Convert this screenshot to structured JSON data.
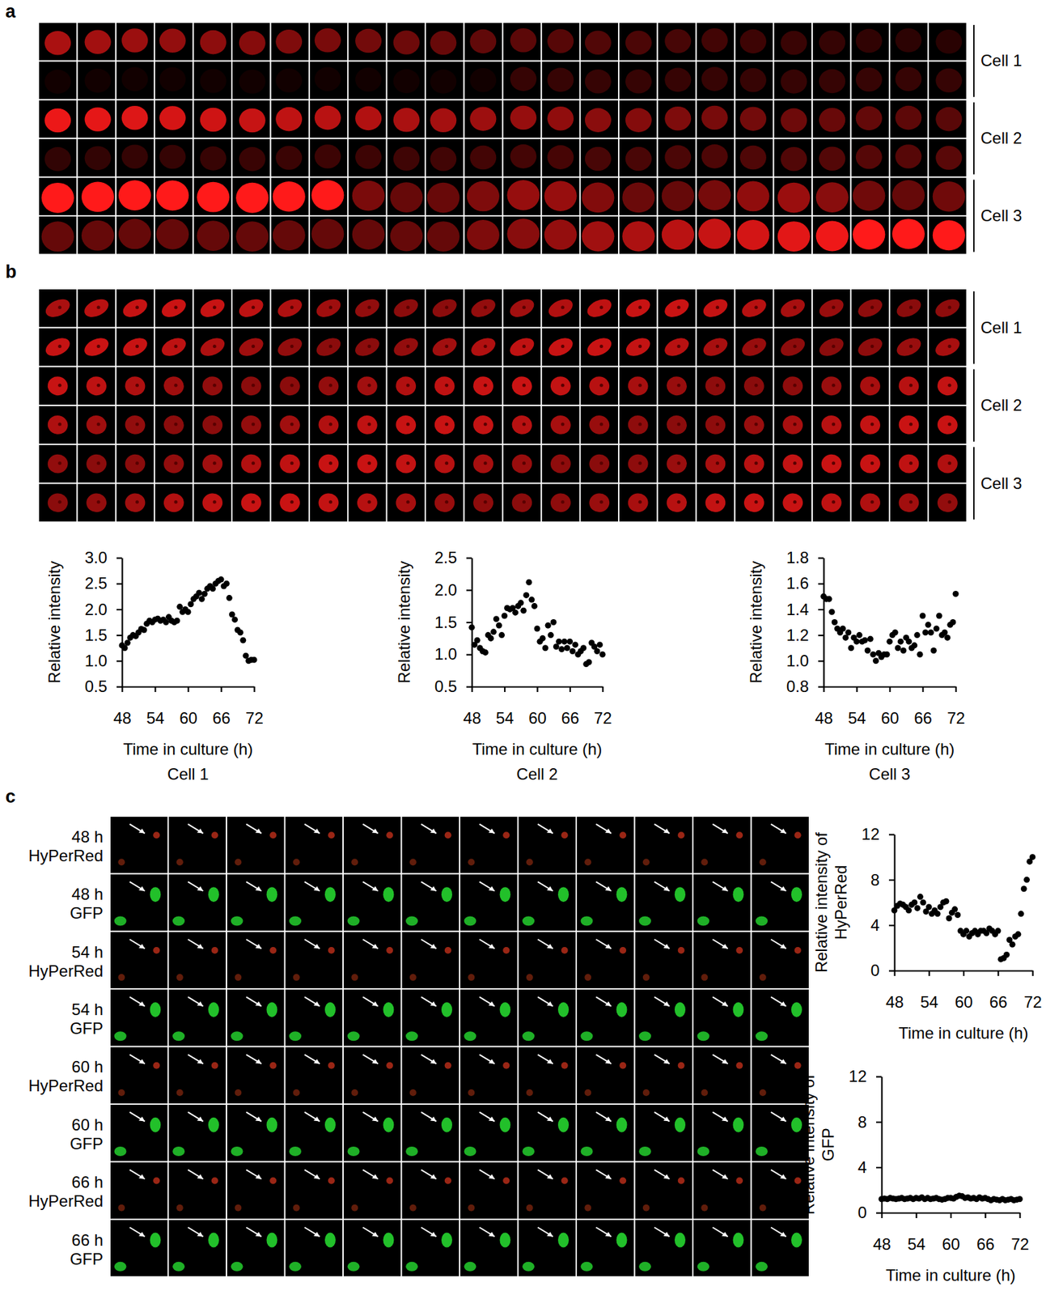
{
  "panel_labels": [
    "a",
    "b",
    "c"
  ],
  "panel_a": {
    "cells": [
      "Cell 1",
      "Cell 2",
      "Cell 3"
    ]
  },
  "panel_b": {
    "cells": [
      "Cell 1",
      "Cell 2",
      "Cell 3"
    ]
  },
  "panel_c": {
    "rows": [
      {
        "time": "48 h",
        "channel": "HyPerRed"
      },
      {
        "time": "48 h",
        "channel": "GFP"
      },
      {
        "time": "54 h",
        "channel": "HyPerRed"
      },
      {
        "time": "54 h",
        "channel": "GFP"
      },
      {
        "time": "60 h",
        "channel": "HyPerRed"
      },
      {
        "time": "60 h",
        "channel": "GFP"
      },
      {
        "time": "66 h",
        "channel": "HyPerRed"
      },
      {
        "time": "66 h",
        "channel": "GFP"
      }
    ]
  },
  "chart_data": [
    {
      "type": "scatter",
      "title": "Cell 1",
      "xlabel": "Time in culture (h)",
      "ylabel": "Relative intensity",
      "color": "#000000",
      "marker": "circle",
      "x": [
        48,
        48.5,
        49,
        49.5,
        50,
        50.5,
        51,
        51.5,
        52,
        52.5,
        53,
        53.5,
        54,
        54.5,
        55,
        55.5,
        56,
        56.5,
        57,
        57.5,
        58,
        58.5,
        59,
        59.5,
        60,
        60.5,
        61,
        61.5,
        62,
        62.5,
        63,
        63.5,
        64,
        64.5,
        65,
        65.5,
        66,
        66.5,
        67,
        67.5,
        68,
        68.5,
        69,
        69.5,
        70,
        70.5,
        71,
        71.5,
        72
      ],
      "values": [
        1.3,
        1.25,
        1.35,
        1.45,
        1.5,
        1.48,
        1.55,
        1.62,
        1.6,
        1.72,
        1.78,
        1.75,
        1.8,
        1.82,
        1.78,
        1.8,
        1.75,
        1.85,
        1.78,
        1.75,
        1.78,
        2.05,
        1.95,
        2.0,
        1.95,
        2.1,
        2.2,
        2.25,
        2.32,
        2.2,
        2.3,
        2.4,
        2.45,
        2.4,
        2.5,
        2.55,
        2.58,
        2.45,
        2.5,
        2.22,
        1.9,
        1.8,
        1.6,
        1.55,
        1.4,
        1.1,
        1.0,
        1.02,
        1.02
      ],
      "xlim": [
        48,
        72
      ],
      "xticks": [
        48,
        54,
        60,
        66,
        72
      ],
      "ylim": [
        0.5,
        3
      ],
      "yticks": [
        0.5,
        {
          "value": 1,
          "label": "1.0"
        },
        1.5,
        {
          "value": 2,
          "label": "2.0"
        },
        2.5,
        {
          "value": 3,
          "label": "3.0"
        }
      ]
    },
    {
      "type": "scatter",
      "title": "Cell 2",
      "xlabel": "Time in culture (h)",
      "ylabel": "Relative intensity",
      "color": "#000000",
      "marker": "circle",
      "x": [
        48,
        48.5,
        49,
        49.5,
        50,
        50.5,
        51,
        51.5,
        52,
        52.5,
        53,
        53.5,
        54,
        54.5,
        55,
        55.5,
        56,
        56.5,
        57,
        57.5,
        58,
        58.5,
        59,
        59.5,
        60,
        60.5,
        61,
        61.5,
        62,
        62.5,
        63,
        63.5,
        64,
        64.5,
        65,
        65.5,
        66,
        66.5,
        67,
        67.5,
        68,
        68.5,
        69,
        69.5,
        70,
        70.5,
        71,
        71.5,
        72
      ],
      "values": [
        1.42,
        1.15,
        1.22,
        1.1,
        1.05,
        1.03,
        1.3,
        1.25,
        1.35,
        1.55,
        1.45,
        1.3,
        1.6,
        1.72,
        1.7,
        1.72,
        1.65,
        1.75,
        1.8,
        1.68,
        1.92,
        2.12,
        1.85,
        1.75,
        1.4,
        1.2,
        1.25,
        1.1,
        1.45,
        1.3,
        1.5,
        1.12,
        1.2,
        1.08,
        1.2,
        1.1,
        1.2,
        1.05,
        1.15,
        1.0,
        1.05,
        1.1,
        0.85,
        0.88,
        1.18,
        1.12,
        1.05,
        1.15,
        1.0
      ],
      "xlim": [
        48,
        72
      ],
      "xticks": [
        48,
        54,
        60,
        66,
        72
      ],
      "ylim": [
        0.5,
        2.5
      ],
      "yticks": [
        0.5,
        {
          "value": 1,
          "label": "1.0"
        },
        1.5,
        {
          "value": 2,
          "label": "2.0"
        },
        2.5
      ]
    },
    {
      "type": "scatter",
      "title": "Cell 3",
      "xlabel": "Time in culture (h)",
      "ylabel": "Relative intensity",
      "color": "#000000",
      "marker": "circle",
      "x": [
        48,
        48.5,
        49,
        49.5,
        50,
        50.5,
        51,
        51.5,
        52,
        52.5,
        53,
        53.5,
        54,
        54.5,
        55,
        55.5,
        56,
        56.5,
        57,
        57.5,
        58,
        58.5,
        59,
        59.5,
        60,
        60.5,
        61,
        61.5,
        62,
        62.5,
        63,
        63.5,
        64,
        64.5,
        65,
        65.5,
        66,
        66.5,
        67,
        67.5,
        68,
        68.5,
        69,
        69.5,
        70,
        70.5,
        71,
        71.5,
        72
      ],
      "values": [
        1.5,
        1.48,
        1.48,
        1.38,
        1.3,
        1.25,
        1.22,
        1.25,
        1.18,
        1.22,
        1.1,
        1.18,
        1.15,
        1.2,
        1.15,
        1.16,
        1.08,
        1.17,
        1.05,
        1.0,
        1.06,
        1.03,
        1.05,
        1.05,
        1.15,
        1.2,
        1.22,
        1.1,
        1.15,
        1.08,
        1.18,
        1.15,
        1.1,
        1.12,
        1.2,
        1.05,
        1.35,
        1.22,
        1.28,
        1.22,
        1.08,
        1.25,
        1.35,
        1.2,
        1.22,
        1.18,
        1.28,
        1.3,
        1.52
      ],
      "xlim": [
        48,
        72
      ],
      "xticks": [
        48,
        54,
        60,
        66,
        72
      ],
      "ylim": [
        0.8,
        1.8
      ],
      "yticks": [
        0.8,
        {
          "value": 1,
          "label": "1.0"
        },
        1.2,
        1.4,
        1.6,
        1.8
      ]
    },
    {
      "type": "scatter",
      "xlabel": "Time in culture (h)",
      "ylabel": [
        "Relative intensity of",
        "HyPerRed"
      ],
      "color": "#000000",
      "marker": "circle",
      "x": [
        48,
        48.5,
        49,
        49.5,
        50,
        50.5,
        51,
        51.5,
        52,
        52.5,
        53,
        53.5,
        54,
        54.5,
        55,
        55.5,
        56,
        56.5,
        57,
        57.5,
        58,
        58.5,
        59,
        59.5,
        60,
        60.5,
        61,
        61.5,
        62,
        62.5,
        63,
        63.5,
        64,
        64.5,
        65,
        65.5,
        66,
        66.5,
        67,
        67.5,
        68,
        68.5,
        69,
        69.5,
        70,
        70.5,
        71,
        71.5,
        72
      ],
      "values": [
        5.3,
        5.7,
        5.9,
        5.8,
        5.6,
        5.3,
        5.8,
        6.0,
        5.5,
        6.5,
        6.0,
        5.2,
        5.6,
        5.0,
        5.3,
        5.0,
        5.6,
        6.0,
        6.1,
        4.6,
        5.1,
        5.4,
        4.9,
        3.5,
        3.2,
        3.5,
        3.0,
        3.3,
        3.5,
        3.2,
        3.5,
        3.5,
        3.3,
        3.7,
        3.5,
        3.2,
        3.5,
        1.0,
        1.1,
        1.4,
        2.7,
        2.3,
        3.0,
        3.2,
        5.0,
        7.2,
        8.0,
        9.6,
        10.0
      ],
      "xlim": [
        48,
        72
      ],
      "xticks": [
        48,
        54,
        60,
        66,
        72
      ],
      "ylim": [
        0,
        12
      ],
      "yticks": [
        0,
        4,
        8,
        12
      ]
    },
    {
      "type": "scatter",
      "xlabel": "Time in culture (h)",
      "ylabel": [
        "Relative intensity of",
        "GFP"
      ],
      "color": "#000000",
      "marker": "circle",
      "x": [
        48,
        48.5,
        49,
        49.5,
        50,
        50.5,
        51,
        51.5,
        52,
        52.5,
        53,
        53.5,
        54,
        54.5,
        55,
        55.5,
        56,
        56.5,
        57,
        57.5,
        58,
        58.5,
        59,
        59.5,
        60,
        60.5,
        61,
        61.5,
        62,
        62.5,
        63,
        63.5,
        64,
        64.5,
        65,
        65.5,
        66,
        66.5,
        67,
        67.5,
        68,
        68.5,
        69,
        69.5,
        70,
        70.5,
        71,
        71.5,
        72
      ],
      "values": [
        1.2,
        1.25,
        1.2,
        1.3,
        1.25,
        1.2,
        1.25,
        1.3,
        1.2,
        1.25,
        1.3,
        1.2,
        1.3,
        1.25,
        1.35,
        1.2,
        1.3,
        1.2,
        1.25,
        1.3,
        1.2,
        1.15,
        1.2,
        1.3,
        1.3,
        1.25,
        1.4,
        1.5,
        1.45,
        1.3,
        1.35,
        1.25,
        1.3,
        1.2,
        1.35,
        1.25,
        1.3,
        1.2,
        1.1,
        1.2,
        1.15,
        1.1,
        1.2,
        1.1,
        1.15,
        1.2,
        1.1,
        1.15,
        1.2
      ],
      "xlim": [
        48,
        72
      ],
      "xticks": [
        48,
        54,
        60,
        66,
        72
      ],
      "ylim": [
        0,
        12
      ],
      "yticks": [
        0,
        4,
        8,
        12
      ]
    }
  ]
}
